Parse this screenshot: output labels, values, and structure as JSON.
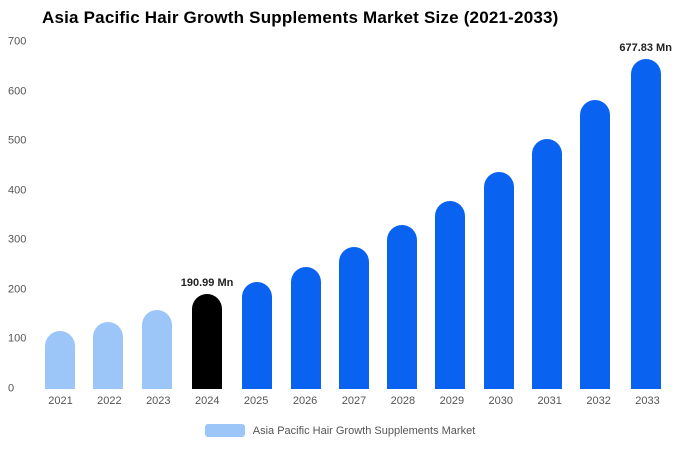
{
  "title": "Asia Pacific Hair Growth Supplements Market Size (2021-2033)",
  "legend": {
    "label": "Asia Pacific Hair Growth Supplements Market",
    "swatch_color": "#9dc6f8"
  },
  "colors": {
    "light_blue": "#9dc6f8",
    "highlight_black": "#000000",
    "primary_blue": "#0a63f0",
    "text_grey": "#555555",
    "title_black": "#000000"
  },
  "chart_data": {
    "type": "bar",
    "title": "Asia Pacific Hair Growth Supplements Market Size (2021-2033)",
    "xlabel": "",
    "ylabel": "",
    "categories": [
      "2021",
      "2022",
      "2023",
      "2024",
      "2025",
      "2026",
      "2027",
      "2028",
      "2029",
      "2030",
      "2031",
      "2032",
      "2033"
    ],
    "values": [
      118,
      136,
      160,
      190.99,
      215,
      246,
      286,
      330,
      380,
      437,
      505,
      583,
      677.83
    ],
    "bar_colors": [
      "#9dc6f8",
      "#9dc6f8",
      "#9dc6f8",
      "#000000",
      "#0a63f0",
      "#0a63f0",
      "#0a63f0",
      "#0a63f0",
      "#0a63f0",
      "#0a63f0",
      "#0a63f0",
      "#0a63f0",
      "#0a63f0"
    ],
    "annotations": [
      {
        "index": 3,
        "text": "190.99 Mn"
      },
      {
        "index": 12,
        "text": "677.83 Mn"
      }
    ],
    "ylim": [
      0,
      700
    ],
    "yticks": [
      0,
      100,
      200,
      300,
      400,
      500,
      600,
      700
    ],
    "grid": false,
    "legend_position": "bottom",
    "legend_entries": [
      "Asia Pacific Hair Growth Supplements Market"
    ]
  }
}
